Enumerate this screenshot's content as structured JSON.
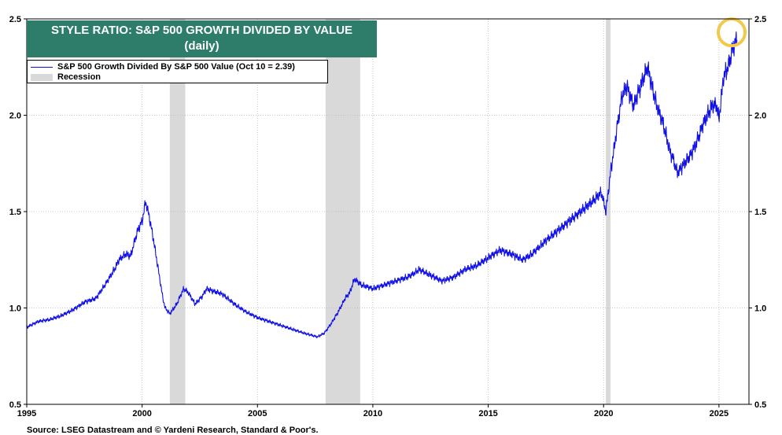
{
  "chart_data": {
    "type": "line",
    "title": "STYLE RATIO: S&P 500 GROWTH DIVIDED BY VALUE",
    "subtitle": "(daily)",
    "xlabel": "",
    "ylabel": "",
    "xlim": [
      1995,
      2026.3
    ],
    "ylim": [
      0.5,
      2.5
    ],
    "x_ticks": [
      1995,
      2000,
      2005,
      2010,
      2015,
      2020,
      2025
    ],
    "x_tick_labels": [
      "1995",
      "2000",
      "2005",
      "2010",
      "2015",
      "2020",
      "2025"
    ],
    "y_ticks": [
      0.5,
      1.0,
      1.5,
      2.0,
      2.5
    ],
    "y_tick_labels": [
      "0.5",
      "1.0",
      "1.5",
      "2.0",
      "2.5"
    ],
    "grid": true,
    "legend": [
      {
        "label": "S&P 500 Growth Divided By S&P 500 Value (Oct 10 = 2.39)",
        "kind": "line",
        "color": "#1010e6"
      },
      {
        "label": "Recession",
        "kind": "band",
        "color": "#d9d9d9"
      }
    ],
    "recessions": [
      [
        2001.2,
        2001.87
      ],
      [
        2007.95,
        2009.45
      ],
      [
        2020.1,
        2020.3
      ]
    ],
    "series": [
      {
        "name": "S&P 500 Growth Divided By S&P 500 Value (Oct 10 = 2.39)",
        "color": "#1010e6",
        "x": [
          1995.0,
          1995.5,
          1996.0,
          1996.5,
          1997.0,
          1997.5,
          1998.0,
          1998.5,
          1998.8,
          1999.0,
          1999.3,
          1999.5,
          1999.8,
          2000.0,
          2000.15,
          2000.3,
          2000.5,
          2000.7,
          2000.9,
          2001.0,
          2001.2,
          2001.5,
          2001.8,
          2002.0,
          2002.3,
          2002.6,
          2002.8,
          2003.0,
          2003.3,
          2003.5,
          2003.8,
          2004.0,
          2004.5,
          2005.0,
          2005.5,
          2006.0,
          2006.5,
          2007.0,
          2007.3,
          2007.6,
          2007.9,
          2008.2,
          2008.5,
          2008.8,
          2009.0,
          2009.2,
          2009.5,
          2010.0,
          2010.5,
          2011.0,
          2011.5,
          2011.8,
          2012.0,
          2012.5,
          2013.0,
          2013.5,
          2014.0,
          2014.5,
          2015.0,
          2015.5,
          2016.0,
          2016.5,
          2016.9,
          2017.5,
          2018.0,
          2018.5,
          2019.0,
          2019.5,
          2019.9,
          2020.1,
          2020.3,
          2020.6,
          2020.8,
          2021.0,
          2021.3,
          2021.6,
          2021.9,
          2022.0,
          2022.3,
          2022.6,
          2022.9,
          2023.0,
          2023.2,
          2023.5,
          2023.8,
          2024.0,
          2024.3,
          2024.5,
          2024.7,
          2024.9,
          2025.0,
          2025.2,
          2025.4,
          2025.6,
          2025.78
        ],
        "y": [
          0.9,
          0.93,
          0.94,
          0.96,
          0.99,
          1.03,
          1.05,
          1.14,
          1.2,
          1.25,
          1.28,
          1.27,
          1.4,
          1.45,
          1.55,
          1.48,
          1.35,
          1.2,
          1.05,
          1.0,
          0.97,
          1.02,
          1.1,
          1.08,
          1.02,
          1.06,
          1.1,
          1.09,
          1.08,
          1.07,
          1.04,
          1.02,
          0.98,
          0.95,
          0.93,
          0.91,
          0.89,
          0.87,
          0.86,
          0.85,
          0.87,
          0.92,
          0.98,
          1.05,
          1.08,
          1.15,
          1.12,
          1.1,
          1.12,
          1.14,
          1.16,
          1.18,
          1.2,
          1.17,
          1.14,
          1.16,
          1.2,
          1.22,
          1.26,
          1.3,
          1.28,
          1.25,
          1.28,
          1.35,
          1.4,
          1.45,
          1.5,
          1.55,
          1.6,
          1.5,
          1.7,
          1.95,
          2.1,
          2.15,
          2.05,
          2.15,
          2.25,
          2.2,
          2.05,
          1.95,
          1.8,
          1.78,
          1.7,
          1.75,
          1.8,
          1.85,
          1.95,
          2.0,
          2.05,
          2.05,
          1.98,
          2.2,
          2.25,
          2.35,
          2.39
        ]
      }
    ],
    "highlight": {
      "x": 2025.55,
      "y": 2.43,
      "color": "#f2c94c"
    },
    "source": "Source: LSEG Datastream and © Yardeni Research, Standard & Poor's."
  }
}
